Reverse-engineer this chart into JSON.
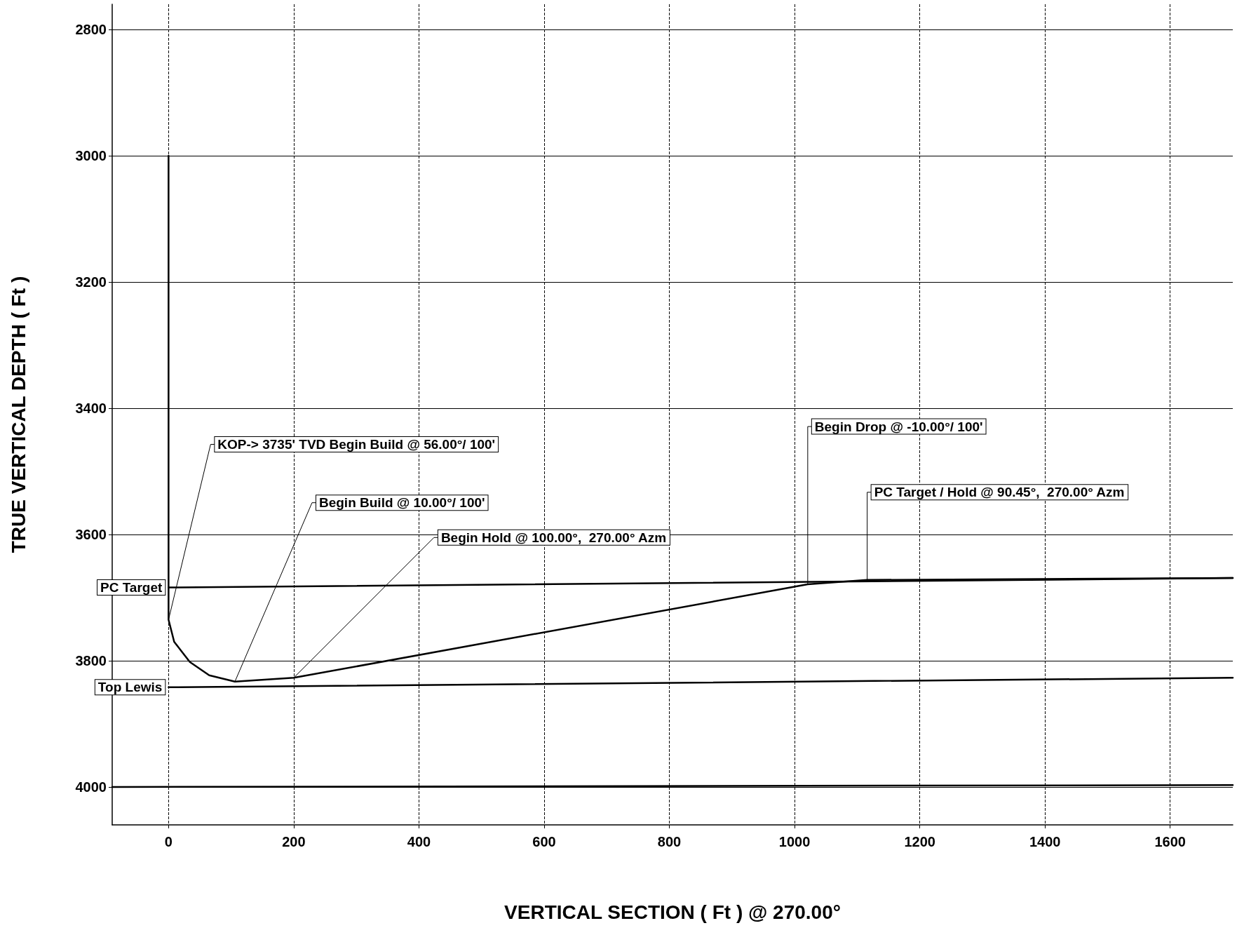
{
  "chart_data": {
    "type": "line",
    "xlabel": "VERTICAL SECTION ( Ft ) @ 270.00°",
    "ylabel": "TRUE VERTICAL DEPTH ( Ft )",
    "series": [
      {
        "color": "#000000",
        "x": [
          0,
          0,
          9,
          34,
          65,
          106,
          200,
          1021,
          1116,
          1700
        ],
        "values": [
          3000,
          3735,
          3770,
          3802,
          3823,
          3833,
          3827,
          3679,
          3672,
          3669
        ]
      },
      {
        "name": "PC Target",
        "color": "#000000",
        "x": [
          0,
          1700
        ],
        "values": [
          3684,
          3669
        ]
      },
      {
        "name": "Top Lewis",
        "color": "#000000",
        "x": [
          0,
          1700
        ],
        "values": [
          3842,
          3827
        ]
      },
      {
        "color": "#000000",
        "x": [
          -90,
          1700
        ],
        "values": [
          4000,
          3997
        ]
      }
    ],
    "annotations": [
      {
        "text": "KOP-> 3735' TVD Begin Build @ 56.00°/ 100'",
        "x": 0,
        "y": 3735
      },
      {
        "text": "Begin Build @ 10.00°/ 100'",
        "x": 106,
        "y": 3833
      },
      {
        "text": "Begin Hold @ 100.00°,  270.00° Azm",
        "x": 200,
        "y": 3827
      },
      {
        "text": "Begin Drop @ -10.00°/ 100'",
        "x": 1021,
        "y": 3679
      },
      {
        "text": "PC Target / Hold @ 90.45°,  270.00° Azm",
        "x": 1116,
        "y": 3672
      }
    ],
    "xlim": [
      -90,
      1700
    ],
    "xticks": [
      0,
      200,
      400,
      600,
      800,
      1000,
      1200,
      1400,
      1600
    ],
    "ylim": [
      4060,
      2760
    ],
    "yticks": [
      2800,
      3000,
      3200,
      3400,
      3600,
      3800,
      4000
    ],
    "grid": true,
    "legend": false,
    "marker": "none",
    "line_style": "solid"
  }
}
